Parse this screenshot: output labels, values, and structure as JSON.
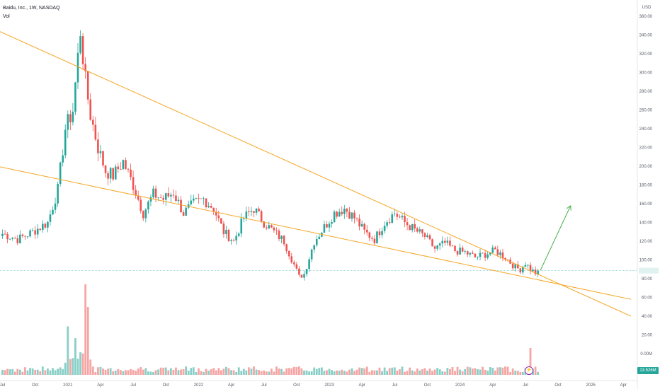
{
  "legend": {
    "symbol": "Baidu, Inc., 1W, NASDAQ",
    "volume_label": "Vol"
  },
  "currency": "USD",
  "volume_badge": "13.526M",
  "alert_icon": "lightning-icon",
  "colors": {
    "up": "#26a69a",
    "down": "#ef5350",
    "up_vol": "#89cfc7",
    "down_vol": "#f5a5a3",
    "trendline": "#f5a623",
    "arrow": "#4caf50",
    "price_line": "#26a69a"
  },
  "chart_data": {
    "type": "candlestick",
    "title": "Baidu, Inc., 1W, NASDAQ",
    "ylim": [
      0,
      385
    ],
    "y_ticks": [
      380,
      360,
      340,
      320,
      300,
      280,
      260,
      240,
      220,
      200,
      180,
      160,
      140,
      120,
      100,
      80,
      60,
      40,
      20,
      0
    ],
    "y_tick_labels": [
      "380.00",
      "360.00",
      "340.00",
      "320.00",
      "300.00",
      "280.00",
      "260.00",
      "240.00",
      "220.00",
      "200.00",
      "180.00",
      "160.00",
      "140.00",
      "120.00",
      "100.00",
      "80.00",
      "60.00",
      "40.00",
      "20.00",
      "0.00M"
    ],
    "x_ticks": [
      {
        "label": "Jul",
        "week": 0
      },
      {
        "label": "Oct",
        "week": 13
      },
      {
        "label": "2021",
        "week": 26
      },
      {
        "label": "Apr",
        "week": 39
      },
      {
        "label": "Jul",
        "week": 52
      },
      {
        "label": "Oct",
        "week": 65
      },
      {
        "label": "2022",
        "week": 78
      },
      {
        "label": "Apr",
        "week": 91
      },
      {
        "label": "Jul",
        "week": 104
      },
      {
        "label": "Oct",
        "week": 117
      },
      {
        "label": "2023",
        "week": 130
      },
      {
        "label": "Apr",
        "week": 143
      },
      {
        "label": "Jul",
        "week": 156
      },
      {
        "label": "Oct",
        "week": 169
      },
      {
        "label": "2024",
        "week": 182
      },
      {
        "label": "Apr",
        "week": 195
      },
      {
        "label": "Jul",
        "week": 208
      },
      {
        "label": "Oct",
        "week": 221
      },
      {
        "label": "2025",
        "week": 234
      },
      {
        "label": "Apr",
        "week": 247
      }
    ],
    "keypoints": [
      [
        0,
        128
      ],
      [
        6,
        122
      ],
      [
        12,
        130
      ],
      [
        18,
        140
      ],
      [
        22,
        175
      ],
      [
        25,
        240
      ],
      [
        28,
        260
      ],
      [
        31,
        345
      ],
      [
        33,
        290
      ],
      [
        35,
        255
      ],
      [
        38,
        220
      ],
      [
        41,
        195
      ],
      [
        44,
        190
      ],
      [
        48,
        205
      ],
      [
        52,
        180
      ],
      [
        56,
        150
      ],
      [
        60,
        170
      ],
      [
        64,
        165
      ],
      [
        68,
        172
      ],
      [
        72,
        150
      ],
      [
        76,
        160
      ],
      [
        80,
        165
      ],
      [
        84,
        155
      ],
      [
        88,
        130
      ],
      [
        92,
        120
      ],
      [
        96,
        145
      ],
      [
        100,
        155
      ],
      [
        104,
        140
      ],
      [
        108,
        130
      ],
      [
        112,
        120
      ],
      [
        116,
        95
      ],
      [
        118,
        82
      ],
      [
        120,
        85
      ],
      [
        124,
        120
      ],
      [
        128,
        135
      ],
      [
        132,
        150
      ],
      [
        136,
        155
      ],
      [
        140,
        145
      ],
      [
        144,
        130
      ],
      [
        148,
        122
      ],
      [
        152,
        140
      ],
      [
        156,
        150
      ],
      [
        160,
        140
      ],
      [
        164,
        132
      ],
      [
        168,
        125
      ],
      [
        172,
        112
      ],
      [
        176,
        118
      ],
      [
        180,
        110
      ],
      [
        184,
        108
      ],
      [
        188,
        103
      ],
      [
        192,
        106
      ],
      [
        196,
        110
      ],
      [
        200,
        103
      ],
      [
        204,
        92
      ],
      [
        206,
        90
      ],
      [
        208,
        97
      ],
      [
        210,
        90
      ],
      [
        212,
        86
      ],
      [
        213,
        91
      ]
    ],
    "candle_count": 214,
    "last_price": 88.6,
    "trendlines": [
      {
        "from": [
          -2,
          345
        ],
        "to": [
          250,
          40
        ]
      },
      {
        "from": [
          -2,
          200
        ],
        "to": [
          250,
          58
        ]
      }
    ],
    "projection_arrow": {
      "from": [
        214,
        89
      ],
      "to": [
        226,
        158
      ]
    }
  }
}
